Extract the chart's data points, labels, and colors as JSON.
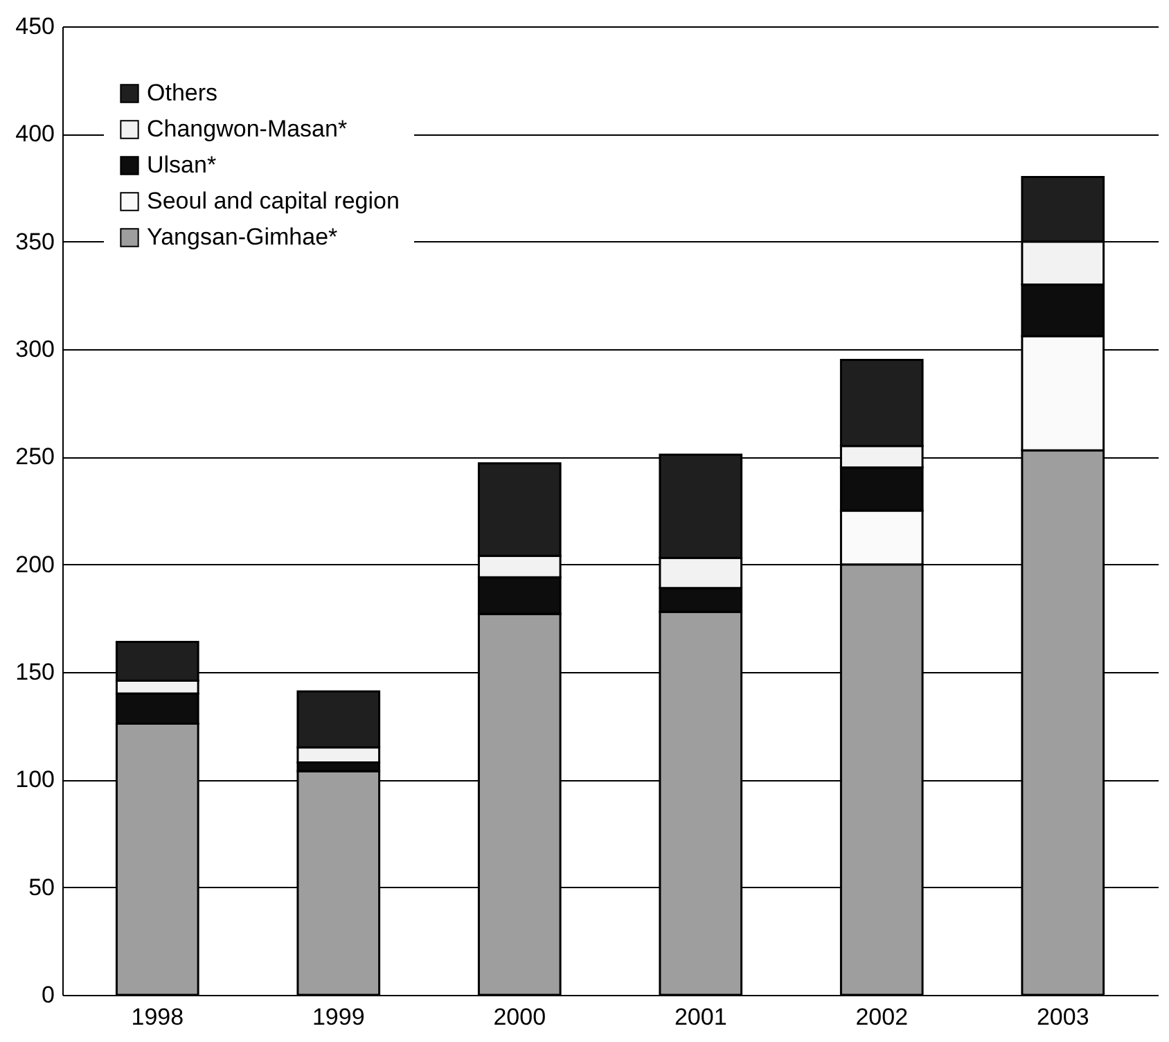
{
  "chart_data": {
    "type": "bar",
    "stacked": true,
    "categories": [
      "1998",
      "1999",
      "2000",
      "2001",
      "2002",
      "2003"
    ],
    "series": [
      {
        "name": "Yangsan-Gimhae*",
        "color": "#9e9e9e",
        "values": [
          126,
          104,
          177,
          178,
          200,
          253
        ]
      },
      {
        "name": "Seoul and capital region",
        "color": "#fafafa",
        "values": [
          0,
          0,
          0,
          0,
          25,
          53
        ]
      },
      {
        "name": "Ulsan*",
        "color": "#0d0d0d",
        "values": [
          14,
          4,
          17,
          11,
          20,
          24
        ]
      },
      {
        "name": "Changwon-Masan*",
        "color": "#f2f2f2",
        "values": [
          6,
          7,
          10,
          14,
          10,
          20
        ]
      },
      {
        "name": "Others",
        "color": "#1f1f1f",
        "values": [
          18,
          26,
          43,
          48,
          40,
          30
        ]
      }
    ],
    "ylim": [
      0,
      450
    ],
    "yticks": [
      0,
      50,
      100,
      150,
      200,
      250,
      300,
      350,
      400,
      450
    ],
    "grid": "y",
    "legend": "top left"
  }
}
